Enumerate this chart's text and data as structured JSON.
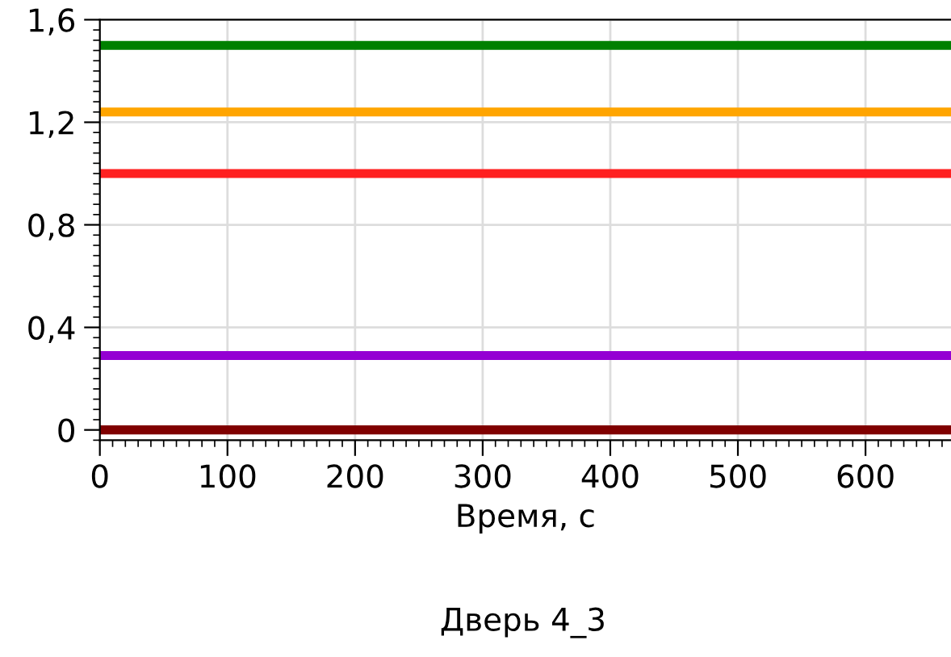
{
  "chart_data": {
    "type": "line",
    "title": "Дверь 4_3",
    "xlabel": "Время, с",
    "x": [
      0,
      667
    ],
    "series": [
      {
        "color": "#008000",
        "values": [
          1.5,
          1.5
        ]
      },
      {
        "color": "#ffa500",
        "values": [
          1.24,
          1.24
        ]
      },
      {
        "color": "#ff2020",
        "values": [
          1.0,
          1.0
        ]
      },
      {
        "color": "#9400d3",
        "values": [
          0.29,
          0.29
        ]
      },
      {
        "color": "#800000",
        "values": [
          0.0,
          0.0
        ]
      }
    ],
    "xlim": [
      0,
      667
    ],
    "xticks": [
      0,
      100,
      200,
      300,
      400,
      500,
      600
    ],
    "ylim": [
      -0.04,
      1.6
    ],
    "yticks": [
      0,
      {
        "value": 0.4,
        "label": "0,4"
      },
      {
        "value": 0.8,
        "label": "0,8"
      },
      {
        "value": 1.2,
        "label": "1,2"
      },
      {
        "value": 1.6,
        "label": "1,6"
      }
    ],
    "grid": true,
    "marker": "none",
    "line_style": "solid"
  }
}
